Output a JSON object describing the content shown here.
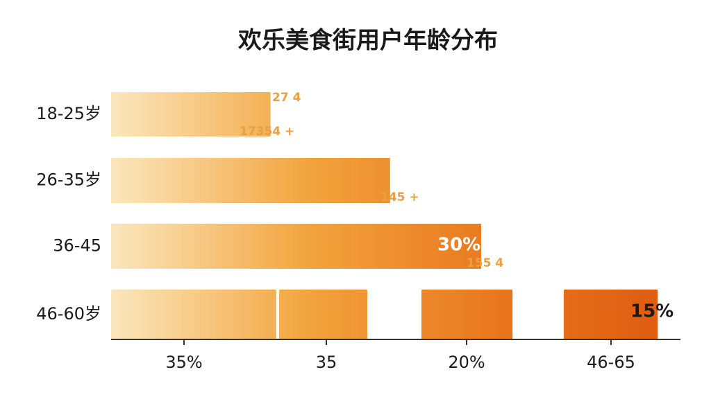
{
  "chart_data": {
    "type": "bar",
    "orientation": "horizontal",
    "title": "欢乐美食街用户年龄分布",
    "categories": [
      "18-25岁",
      "26-35岁",
      "36-45",
      "46-60岁"
    ],
    "values": [
      28,
      49,
      65,
      null
    ],
    "last_row_blocks": [
      {
        "start": 0,
        "end": 29
      },
      {
        "start": 29.5,
        "end": 45
      },
      {
        "start": 54.5,
        "end": 70.5
      },
      {
        "start": 79.5,
        "end": 96
      }
    ],
    "xlim": [
      0,
      100
    ],
    "x_labels": [
      "35%",
      "35",
      "20%",
      "46-65"
    ],
    "annotations": [
      "27 4",
      "17354 +",
      "145 +",
      "155 4",
      "30%",
      "15%"
    ],
    "colors": [
      "#fbe7bd",
      "#f2a33c",
      "#e8741c",
      "#de5a10"
    ]
  }
}
